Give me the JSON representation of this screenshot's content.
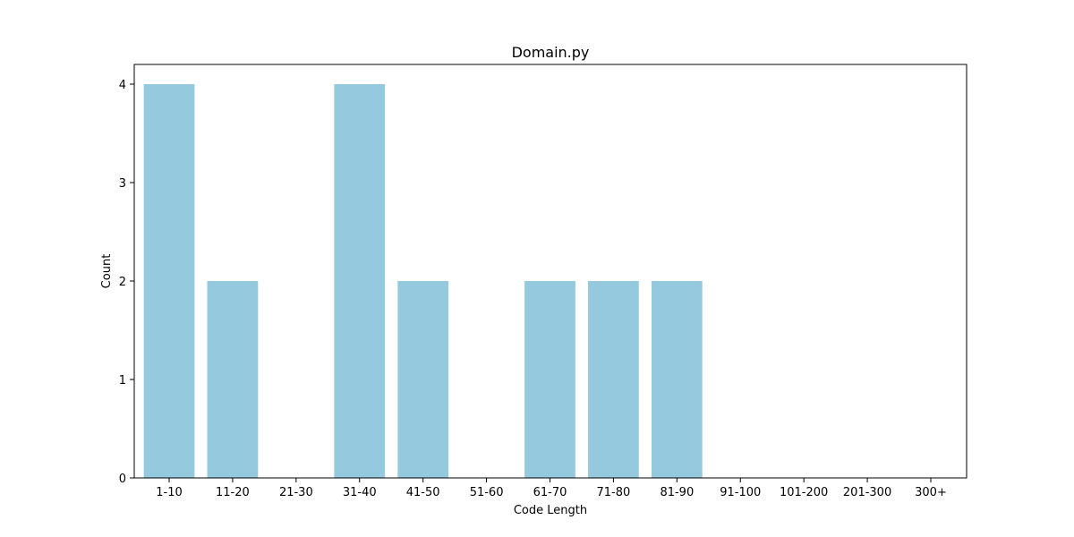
{
  "chart_data": {
    "type": "bar",
    "title": "Domain.py",
    "xlabel": "Code Length",
    "ylabel": "Count",
    "categories": [
      "1-10",
      "11-20",
      "21-30",
      "31-40",
      "41-50",
      "51-60",
      "61-70",
      "71-80",
      "81-90",
      "91-100",
      "101-200",
      "201-300",
      "300+"
    ],
    "values": [
      4,
      2,
      0,
      4,
      2,
      0,
      2,
      2,
      2,
      0,
      0,
      0,
      0
    ],
    "ylim": [
      0,
      4.2
    ],
    "yticks": [
      0,
      1,
      2,
      3,
      4
    ],
    "grid": false,
    "bar_color": "#95c9de"
  }
}
